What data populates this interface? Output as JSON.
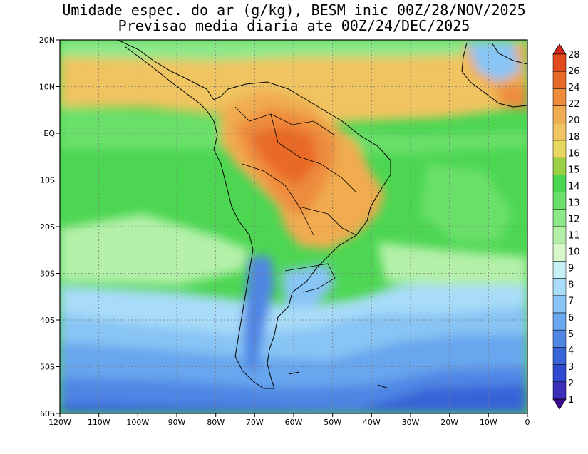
{
  "title": {
    "line1": "Umidade espec. do ar (g/kg), BESM inic 00Z/28/NOV/2025",
    "line2": "Previsao media diaria ate 00Z/24/DEC/2025"
  },
  "map": {
    "lon_range": [
      -120,
      0
    ],
    "lat_range": [
      -60,
      20
    ],
    "x_ticks": [
      "120W",
      "110W",
      "100W",
      "90W",
      "80W",
      "70W",
      "60W",
      "50W",
      "40W",
      "30W",
      "20W",
      "10W",
      "0"
    ],
    "y_ticks": [
      "20N",
      "10N",
      "EQ",
      "10S",
      "20S",
      "30S",
      "40S",
      "50S",
      "60S"
    ],
    "grid": "dotted"
  },
  "colorbar": {
    "levels": [
      "1",
      "2",
      "3",
      "4",
      "5",
      "6",
      "7",
      "8",
      "9",
      "10",
      "11",
      "12",
      "13",
      "14",
      "15",
      "16",
      "18",
      "20",
      "22",
      "24",
      "26",
      "28"
    ],
    "colors": [
      "#3b0a8a",
      "#3b2eb8",
      "#2f4ad0",
      "#3864d8",
      "#4f86e4",
      "#68a6ee",
      "#88c4f4",
      "#a8dcf8",
      "#c8eef6",
      "#d8f8cc",
      "#b4f0a8",
      "#8ee88a",
      "#6ae06a",
      "#4cd652",
      "#9ad046",
      "#e8d860",
      "#f0c460",
      "#f0ac50",
      "#ee8c3c",
      "#e86a28",
      "#e04a1c",
      "#d8261c"
    ]
  }
}
